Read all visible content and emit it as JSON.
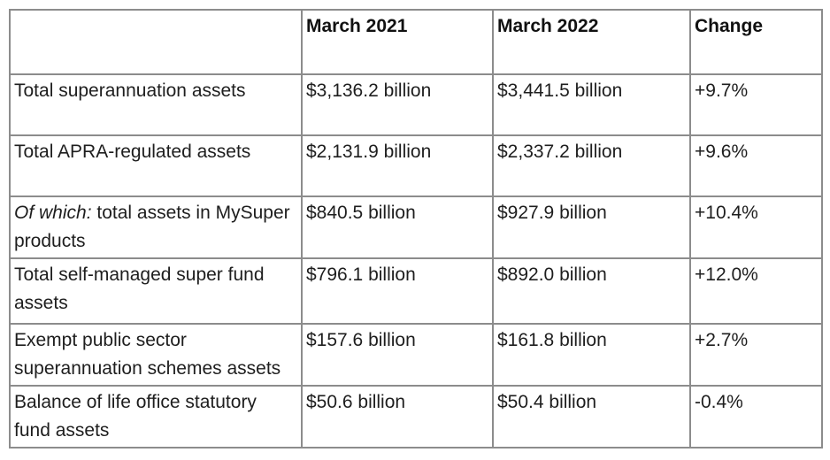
{
  "page": {
    "background_color": "#ffffff"
  },
  "table": {
    "border_color": "#8c8c8c",
    "text_color": "#1e1e1e",
    "headers": [
      "",
      "March 2021",
      "March 2022",
      "Change"
    ],
    "rows": [
      {
        "label": "Total superannuation assets",
        "label_style": "bold",
        "march_2021": "$3,136.2 billion",
        "march_2022": "$3,441.5 billion",
        "change": "+9.7%"
      },
      {
        "label": "Total APRA-regulated assets",
        "march_2021": "$2,131.9 billion",
        "march_2022": "$2,337.2 billion",
        "change": "+9.6%"
      },
      {
        "label_prefix_italic": "Of which:",
        "label": " total assets in MySuper products",
        "march_2021": "$840.5 billion",
        "march_2022": "$927.9 billion",
        "change": "+10.4%"
      },
      {
        "label": "Total self-managed super fund assets",
        "march_2021": "$796.1 billion",
        "march_2022": "$892.0 billion",
        "change": "+12.0%"
      },
      {
        "label": "Exempt public sector superannuation schemes assets",
        "march_2021": "$157.6 billion",
        "march_2022": "$161.8 billion",
        "change": "+2.7%"
      },
      {
        "label": "Balance of life office statutory fund assets",
        "march_2021": "$50.6 billion",
        "march_2022": "$50.4 billion",
        "change": "-0.4%"
      }
    ]
  }
}
